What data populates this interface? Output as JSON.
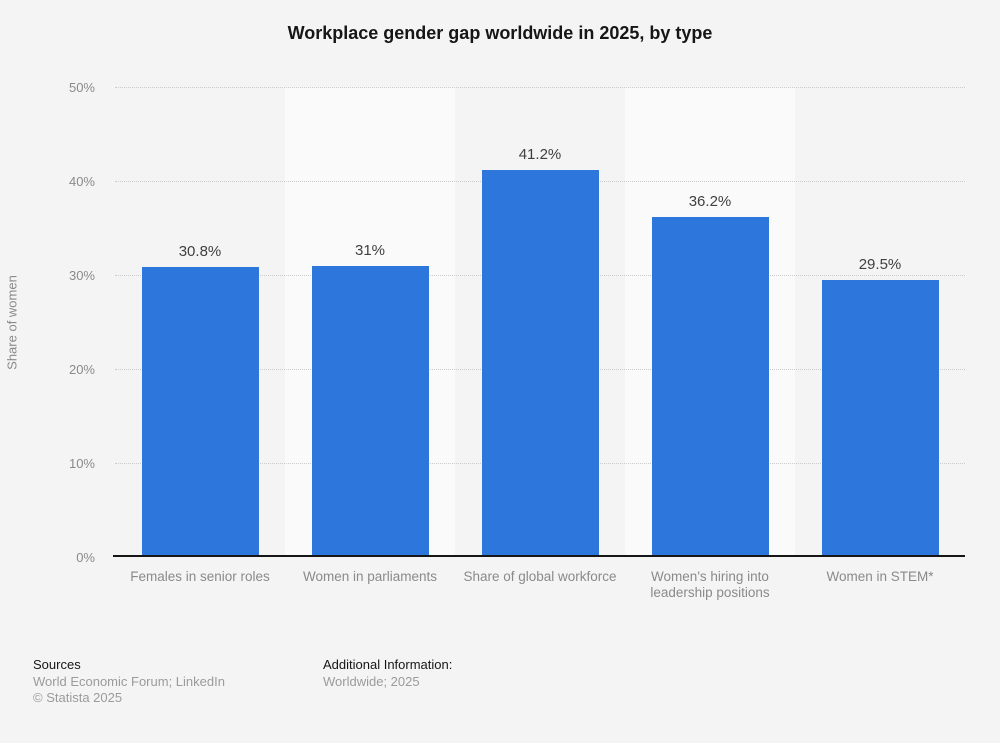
{
  "chart_data": {
    "type": "bar",
    "title": "Workplace gender gap worldwide in 2025, by type",
    "categories": [
      "Females in senior roles",
      "Women in parliaments",
      "Share of global workforce",
      "Women's hiring into leadership positions",
      "Women in STEM*"
    ],
    "values": [
      30.8,
      31,
      41.2,
      36.2,
      29.5
    ],
    "value_labels": [
      "30.8%",
      "31%",
      "41.2%",
      "36.2%",
      "29.5%"
    ],
    "xlabel": "",
    "ylabel": "Share of women",
    "ylim": [
      0,
      50
    ],
    "ytick_step": 10,
    "ytick_labels": [
      "0%",
      "10%",
      "20%",
      "30%",
      "40%",
      "50%"
    ],
    "grid": "horizontal-dotted",
    "legend": "none"
  },
  "colors": {
    "bar": "#2d77dc",
    "stripe_odd": "#f4f4f4",
    "stripe_even": "#fafafa",
    "gridline": "#cbcbcb",
    "axis_line": "#161616",
    "title_text": "#161616",
    "axis_text": "#8a8a8a",
    "value_label_text": "#404040",
    "footer_gray": "#9b9b9b"
  },
  "footer": {
    "sources_title": "Sources",
    "sources_line": "World Economic Forum; LinkedIn",
    "copyright": "© Statista 2025",
    "additional_title": "Additional Information:",
    "additional_line": "Worldwide; 2025"
  }
}
